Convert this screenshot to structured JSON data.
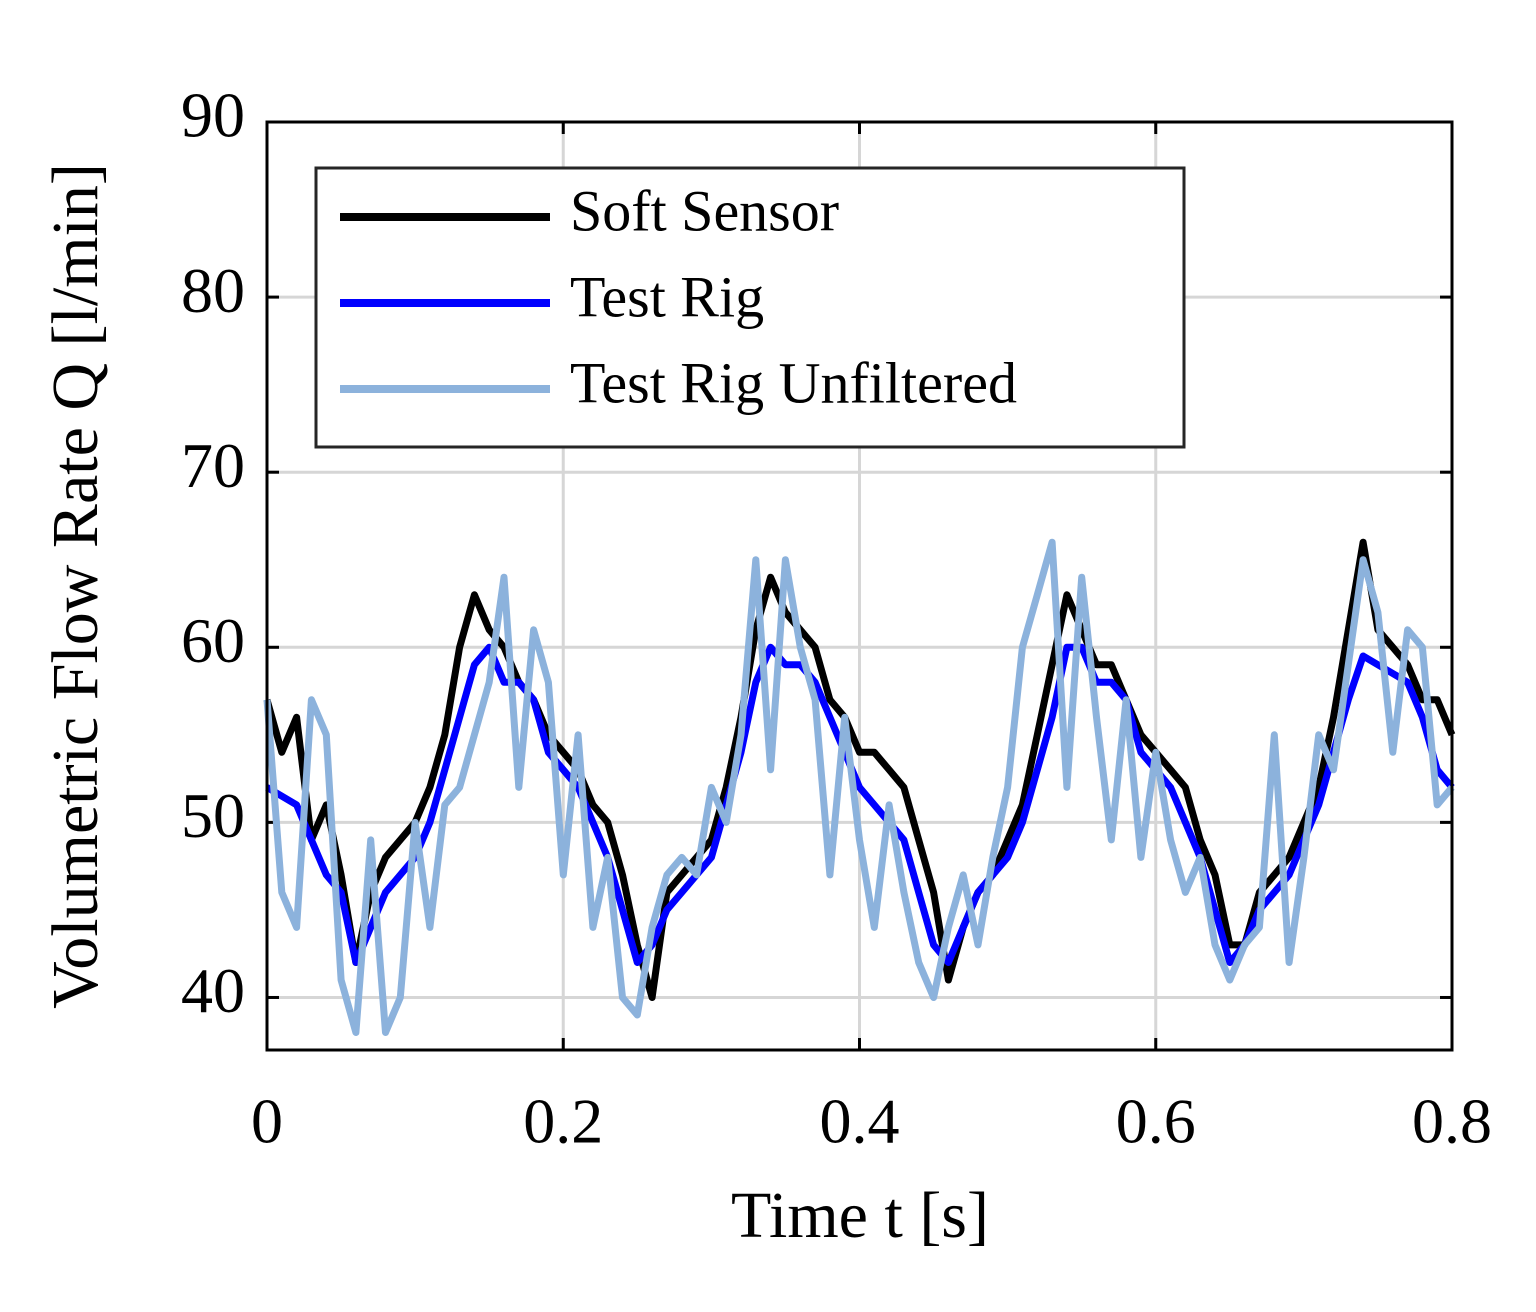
{
  "chart_data": {
    "type": "line",
    "xlabel": "Time t [s]",
    "ylabel": "Volumetric Flow Rate Q [l/min]",
    "x": [
      0,
      0.01,
      0.02,
      0.03,
      0.04,
      0.05,
      0.06,
      0.07,
      0.08,
      0.09,
      0.1,
      0.11,
      0.12,
      0.13,
      0.14,
      0.15,
      0.16,
      0.17,
      0.18,
      0.19,
      0.2,
      0.21,
      0.22,
      0.23,
      0.24,
      0.25,
      0.26,
      0.27,
      0.28,
      0.29,
      0.3,
      0.31,
      0.32,
      0.33,
      0.34,
      0.35,
      0.36,
      0.37,
      0.38,
      0.39,
      0.4,
      0.41,
      0.42,
      0.43,
      0.44,
      0.45,
      0.46,
      0.47,
      0.48,
      0.49,
      0.5,
      0.51,
      0.52,
      0.53,
      0.54,
      0.55,
      0.56,
      0.57,
      0.58,
      0.59,
      0.6,
      0.61,
      0.62,
      0.63,
      0.64,
      0.65,
      0.66,
      0.67,
      0.68,
      0.69,
      0.7,
      0.71,
      0.72,
      0.73,
      0.74,
      0.75,
      0.76,
      0.77,
      0.78,
      0.79,
      0.8
    ],
    "series": [
      {
        "name": "Soft Sensor",
        "color": "#000000",
        "values": [
          57,
          54,
          56,
          49,
          51,
          47,
          42,
          46,
          48,
          49,
          50,
          52,
          55,
          60,
          63,
          61,
          60,
          58,
          57,
          55,
          54,
          53,
          51,
          50,
          47,
          43,
          40,
          46,
          47,
          48,
          49,
          52,
          56,
          61,
          64,
          62,
          61,
          60,
          57,
          56,
          54,
          54,
          53,
          52,
          49,
          46,
          41,
          44,
          46,
          47,
          49,
          51,
          55,
          59,
          63,
          61,
          59,
          59,
          57,
          55,
          54,
          53,
          52,
          49,
          47,
          43,
          43,
          46,
          47,
          48,
          50,
          52,
          56,
          61,
          66,
          61,
          60,
          59,
          57,
          57,
          55
        ]
      },
      {
        "name": "Test Rig",
        "color": "#0000ff",
        "values": [
          52,
          51.5,
          51,
          49,
          47,
          46,
          42,
          44,
          46,
          47,
          48,
          50,
          53,
          56,
          59,
          60,
          58,
          58,
          57,
          54,
          53,
          52,
          50,
          48,
          45,
          42,
          43,
          45,
          46,
          47,
          48,
          51,
          54,
          58,
          60,
          59,
          59,
          58,
          56,
          54,
          52,
          51,
          50,
          49,
          46,
          43,
          42,
          44,
          46,
          47,
          48,
          50,
          53,
          56,
          60,
          60,
          58,
          58,
          57,
          54,
          53,
          52,
          50,
          48,
          45,
          42,
          43,
          45,
          46,
          47,
          49,
          51,
          54,
          57,
          59.5,
          59,
          58.5,
          58,
          56,
          53,
          52
        ]
      },
      {
        "name": "Test Rig Unfiltered",
        "color": "#8cb2dc",
        "values": [
          57,
          46,
          44,
          57,
          55,
          41,
          38,
          49,
          38,
          40,
          50,
          44,
          51,
          52,
          55,
          58,
          64,
          52,
          61,
          58,
          47,
          55,
          44,
          48,
          40,
          39,
          44,
          47,
          48,
          47,
          52,
          50,
          55,
          65,
          53,
          65,
          60,
          57,
          47,
          56,
          49,
          44,
          51,
          46,
          42,
          40,
          44,
          47,
          43,
          48,
          52,
          60,
          63,
          66,
          52,
          64,
          56,
          49,
          57,
          48,
          54,
          49,
          46,
          48,
          43,
          41,
          43,
          44,
          55,
          42,
          48,
          55,
          53,
          59,
          65,
          62,
          54,
          61,
          60,
          51,
          52
        ]
      }
    ],
    "xlim": [
      0,
      0.8
    ],
    "xticks": [
      0,
      0.2,
      0.4,
      0.6,
      0.8
    ],
    "ylim": [
      37,
      90
    ],
    "yticks": [
      40,
      50,
      60,
      70,
      80,
      90
    ],
    "grid": true,
    "legend": "upper left"
  }
}
